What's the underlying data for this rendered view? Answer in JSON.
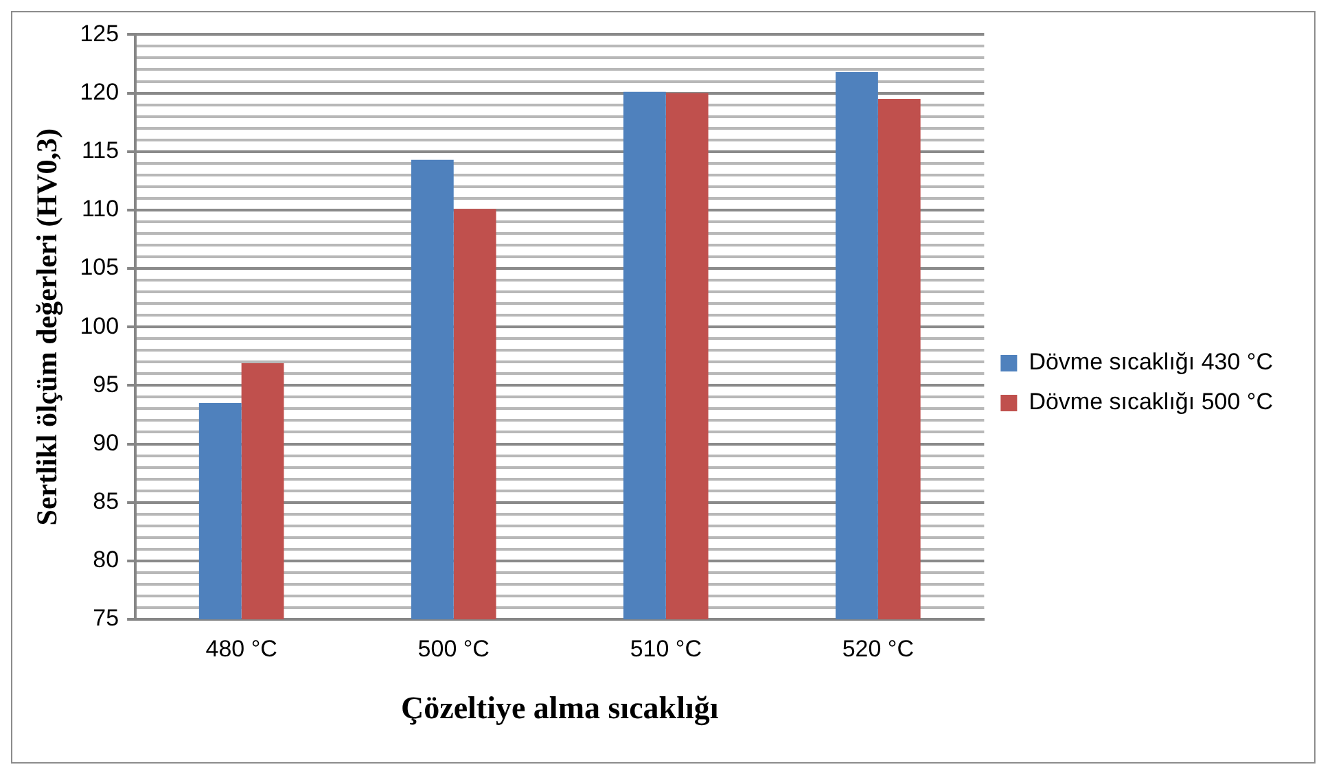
{
  "chart_data": {
    "type": "bar",
    "xlabel": "Çözeltiye alma sıcaklığı",
    "ylabel": "Sertlikl ölçüm değerleri (HV0,3)",
    "categories": [
      "480 °C",
      "500 °C",
      "510 °C",
      "520 °C"
    ],
    "series": [
      {
        "name": "Dövme sıcaklığı 430 °C",
        "color": "#4f81bd",
        "values": [
          93.5,
          114.3,
          120.1,
          121.8
        ]
      },
      {
        "name": "Dövme sıcaklığı 500 °C",
        "color": "#c0504d",
        "values": [
          96.9,
          110.1,
          120.0,
          119.5
        ]
      }
    ],
    "ylim": [
      75,
      125
    ],
    "yticks": [
      75,
      {
        "value": 76,
        "label": null
      },
      {
        "value": 77,
        "label": null
      },
      {
        "value": 78,
        "label": null
      },
      {
        "value": 79,
        "label": null
      },
      80,
      {
        "value": 81,
        "label": null
      },
      {
        "value": 82,
        "label": null
      },
      {
        "value": 83,
        "label": null
      },
      {
        "value": 84,
        "label": null
      },
      85,
      {
        "value": 86,
        "label": null
      },
      {
        "value": 87,
        "label": null
      },
      {
        "value": 88,
        "label": null
      },
      {
        "value": 89,
        "label": null
      },
      90,
      {
        "value": 91,
        "label": null
      },
      {
        "value": 92,
        "label": null
      },
      {
        "value": 93,
        "label": null
      },
      {
        "value": 94,
        "label": null
      },
      95,
      {
        "value": 96,
        "label": null
      },
      {
        "value": 97,
        "label": null
      },
      {
        "value": 98,
        "label": null
      },
      {
        "value": 99,
        "label": null
      },
      100,
      {
        "value": 101,
        "label": null
      },
      {
        "value": 102,
        "label": null
      },
      {
        "value": 103,
        "label": null
      },
      {
        "value": 104,
        "label": null
      },
      105,
      {
        "value": 106,
        "label": null
      },
      {
        "value": 107,
        "label": null
      },
      {
        "value": 108,
        "label": null
      },
      {
        "value": 109,
        "label": null
      },
      110,
      {
        "value": 111,
        "label": null
      },
      {
        "value": 112,
        "label": null
      },
      {
        "value": 113,
        "label": null
      },
      {
        "value": 114,
        "label": null
      },
      115,
      {
        "value": 116,
        "label": null
      },
      {
        "value": 117,
        "label": null
      },
      {
        "value": 118,
        "label": null
      },
      {
        "value": 119,
        "label": null
      },
      120,
      {
        "value": 121,
        "label": null
      },
      {
        "value": 122,
        "label": null
      },
      {
        "value": 123,
        "label": null
      },
      {
        "value": 124,
        "label": null
      },
      125
    ],
    "grid": "y",
    "legend": "right"
  }
}
